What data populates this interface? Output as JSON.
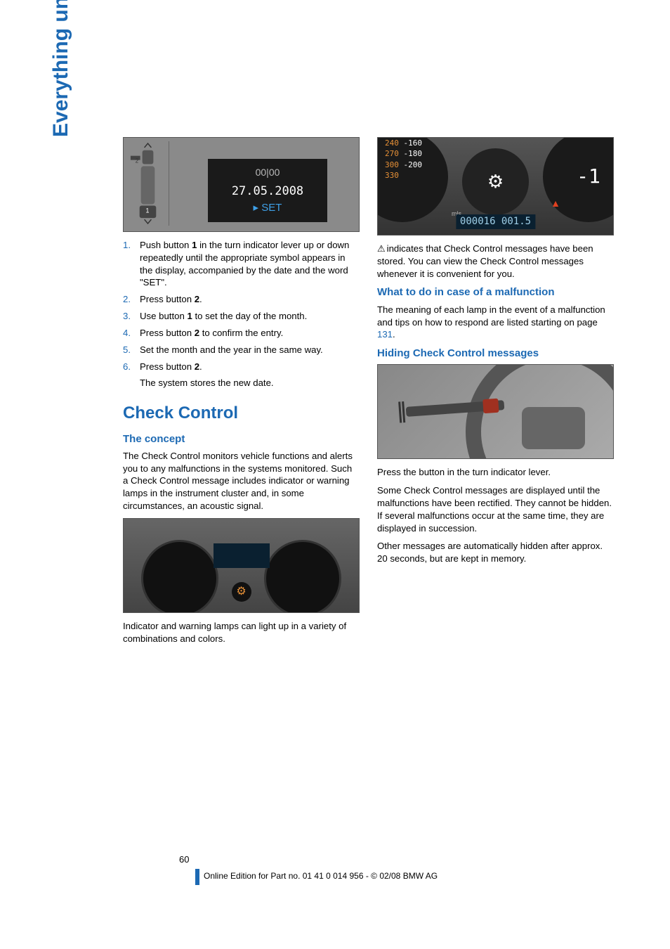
{
  "side_tab": "Everything under control",
  "left": {
    "img_date": {
      "icons": "00|00",
      "date": "27.05.2008",
      "set": "SET"
    },
    "steps": [
      {
        "n": "1.",
        "t": "Push button <b>1</b> in the turn indicator lever up or down repeatedly until the appropriate symbol appears in the display, accompanied by the date and the word \"SET\"."
      },
      {
        "n": "2.",
        "t": "Press button <b>2</b>."
      },
      {
        "n": "3.",
        "t": "Use button <b>1</b> to set the day of the month."
      },
      {
        "n": "4.",
        "t": "Press button <b>2</b> to confirm the entry."
      },
      {
        "n": "5.",
        "t": "Set the month and the year in the same way."
      },
      {
        "n": "6.",
        "t": "Press button <b>2</b>.",
        "sub": "The system stores the new date."
      }
    ],
    "h2": "Check Control",
    "h3": "The concept",
    "p1": "The Check Control monitors vehicle functions and alerts you to any malfunctions in the systems monitored. Such a Check Control message includes indicator or warning lamps in the instrument cluster and, in some circumstances, an acoustic signal.",
    "p2": "Indicator and warning lamps can light up in a variety of combinations and colors."
  },
  "right": {
    "gauge": {
      "ticks": [
        "240",
        "270",
        "300",
        "330"
      ],
      "ticks2": [
        "160",
        "180",
        "200"
      ],
      "gear": "-1",
      "odo_label": "mls",
      "odo": "000016 001.5"
    },
    "p1": "indicates that Check Control messages have been stored. You can view the Check Control messages whenever it is convenient for you.",
    "h3a": "What to do in case of a malfunction",
    "p2a": "The meaning of each lamp in the event of a malfunction and tips on how to respond are listed starting on page ",
    "p2_ref": "131",
    "p2b": ".",
    "h3b": "Hiding Check Control messages",
    "p3": "Press the button in the turn indicator lever.",
    "p4": "Some Check Control messages are displayed until the malfunctions have been rectified. They cannot be hidden. If several malfunctions occur at the same time, they are displayed in succession.",
    "p5": "Other messages are automatically hidden after approx. 20 seconds, but are kept in memory."
  },
  "footer": {
    "page": "60",
    "line": "Online Edition for Part no. 01 41 0 014 956 - © 02/08 BMW AG"
  },
  "colors": {
    "blue": "#1c69b3",
    "orange": "#e69037",
    "bg": "#ffffff",
    "text": "#000000"
  }
}
